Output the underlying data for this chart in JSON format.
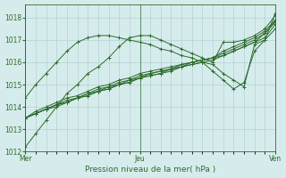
{
  "bg_color": "#d6ecec",
  "grid_color": "#a8cccc",
  "line_color": "#2d6b2d",
  "xlabel": "Pression niveau de la mer( hPa )",
  "ylim": [
    1012,
    1018.6
  ],
  "yticks": [
    1012,
    1013,
    1014,
    1015,
    1016,
    1017,
    1018
  ],
  "xtick_labels": [
    "Mer",
    "Jeu",
    "Ven"
  ],
  "xtick_positions": [
    0,
    11,
    24
  ],
  "vline_positions": [
    0,
    11,
    24
  ],
  "n_points": 25,
  "series": [
    [
      1012.2,
      1012.8,
      1013.4,
      1014.0,
      1014.6,
      1015.0,
      1015.5,
      1015.8,
      1016.2,
      1016.7,
      1017.1,
      1017.2,
      1017.2,
      1017.0,
      1016.8,
      1016.6,
      1016.4,
      1016.2,
      1016.0,
      1016.9,
      1016.9,
      1017.0,
      1017.2,
      1017.5,
      1018.1
    ],
    [
      1013.5,
      1013.8,
      1014.0,
      1014.2,
      1014.4,
      1014.5,
      1014.7,
      1014.9,
      1015.0,
      1015.2,
      1015.3,
      1015.5,
      1015.6,
      1015.7,
      1015.8,
      1015.9,
      1016.0,
      1016.1,
      1016.2,
      1016.5,
      1016.7,
      1016.9,
      1017.1,
      1017.4,
      1017.9
    ],
    [
      1013.5,
      1013.7,
      1013.9,
      1014.1,
      1014.3,
      1014.4,
      1014.6,
      1014.8,
      1014.9,
      1015.1,
      1015.2,
      1015.4,
      1015.5,
      1015.6,
      1015.7,
      1015.9,
      1016.0,
      1016.1,
      1016.2,
      1016.4,
      1016.6,
      1016.8,
      1017.0,
      1017.3,
      1017.8
    ],
    [
      1013.5,
      1013.7,
      1013.9,
      1014.1,
      1014.2,
      1014.4,
      1014.6,
      1014.7,
      1014.9,
      1015.0,
      1015.2,
      1015.3,
      1015.5,
      1015.6,
      1015.7,
      1015.8,
      1016.0,
      1016.1,
      1016.2,
      1016.3,
      1016.5,
      1016.7,
      1016.9,
      1017.1,
      1017.7
    ],
    [
      1013.5,
      1013.7,
      1013.9,
      1014.1,
      1014.2,
      1014.4,
      1014.5,
      1014.7,
      1014.8,
      1015.0,
      1015.1,
      1015.3,
      1015.4,
      1015.5,
      1015.7,
      1015.8,
      1015.9,
      1016.0,
      1015.6,
      1015.2,
      1014.8,
      1015.1,
      1016.5,
      1017.0,
      1018.2
    ],
    [
      1013.5,
      1013.7,
      1013.9,
      1014.0,
      1014.2,
      1014.4,
      1014.5,
      1014.7,
      1014.8,
      1015.0,
      1015.1,
      1015.3,
      1015.4,
      1015.5,
      1015.6,
      1015.8,
      1015.9,
      1016.0,
      1016.1,
      1016.3,
      1016.5,
      1016.7,
      1016.9,
      1017.3,
      1017.85
    ],
    [
      1014.4,
      1015.0,
      1015.5,
      1016.0,
      1016.5,
      1016.9,
      1017.1,
      1017.2,
      1017.2,
      1017.1,
      1017.0,
      1016.9,
      1016.8,
      1016.6,
      1016.5,
      1016.3,
      1016.2,
      1016.0,
      1015.9,
      1015.5,
      1015.2,
      1014.9,
      1016.8,
      1017.0,
      1017.5
    ]
  ]
}
